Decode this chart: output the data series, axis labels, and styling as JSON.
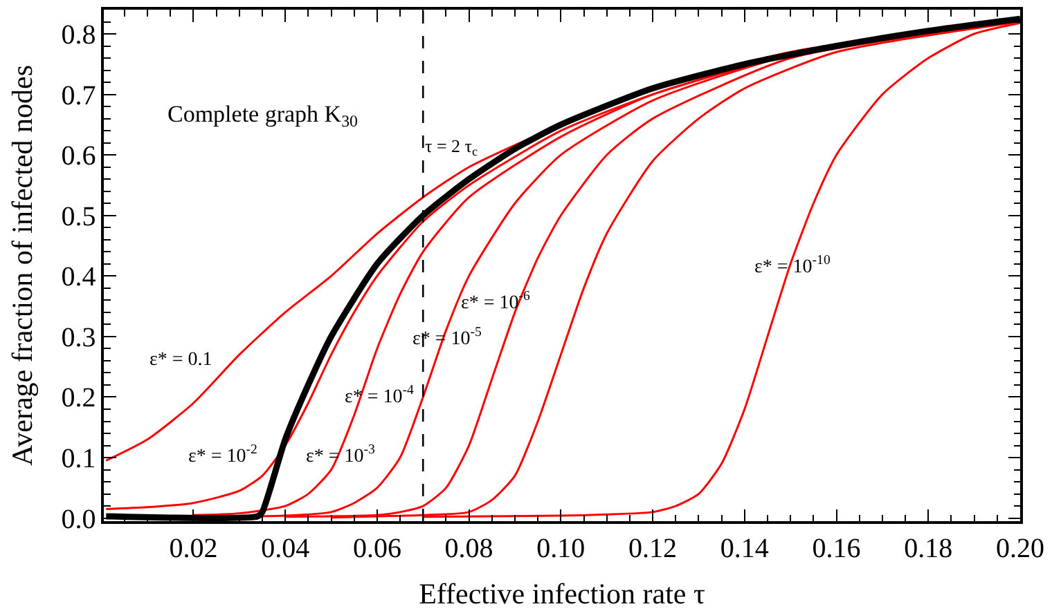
{
  "chart_data": {
    "type": "line",
    "xlabel": "Effective infection rate τ",
    "ylabel": "Average fraction of infected nodes",
    "xlim": [
      0.0005,
      0.2
    ],
    "ylim": [
      -0.005,
      0.84
    ],
    "xticks": [
      0.02,
      0.04,
      0.06,
      0.08,
      {
        "value": 0.1,
        "label": "0.10"
      },
      0.12,
      0.14,
      0.16,
      0.18,
      {
        "value": 0.2,
        "label": "0.20"
      }
    ],
    "yticks": [
      {
        "value": 0,
        "label": "0.0"
      },
      0.1,
      0.2,
      0.3,
      0.4,
      0.5,
      0.6,
      0.7,
      0.8
    ],
    "marker": "none",
    "line_style": "solid",
    "series": [
      {
        "color": "#ff0000",
        "x": [
          0.001,
          0.01,
          0.02,
          0.03,
          0.04,
          0.05,
          0.06,
          0.07,
          0.08,
          0.1,
          0.12,
          0.15,
          0.2
        ],
        "values": [
          0.095,
          0.13,
          0.19,
          0.27,
          0.34,
          0.4,
          0.47,
          0.53,
          0.58,
          0.65,
          0.71,
          0.77,
          0.825
        ]
      },
      {
        "color": "#ff0000",
        "x": [
          0.001,
          0.01,
          0.02,
          0.03,
          0.035,
          0.04,
          0.045,
          0.05,
          0.055,
          0.06,
          0.07,
          0.08,
          0.1,
          0.12,
          0.15,
          0.2
        ],
        "values": [
          0.015,
          0.018,
          0.025,
          0.045,
          0.07,
          0.12,
          0.19,
          0.27,
          0.34,
          0.4,
          0.49,
          0.55,
          0.64,
          0.7,
          0.765,
          0.824
        ]
      },
      {
        "color": "#ff0000",
        "x": [
          0.02,
          0.03,
          0.04,
          0.045,
          0.05,
          0.055,
          0.06,
          0.065,
          0.07,
          0.08,
          0.1,
          0.12,
          0.15,
          0.2
        ],
        "values": [
          0.005,
          0.008,
          0.02,
          0.04,
          0.08,
          0.17,
          0.28,
          0.37,
          0.44,
          0.53,
          0.63,
          0.7,
          0.765,
          0.823
        ]
      },
      {
        "color": "#ff0000",
        "x": [
          0.034,
          0.04,
          0.05,
          0.055,
          0.06,
          0.065,
          0.07,
          0.075,
          0.08,
          0.09,
          0.1,
          0.12,
          0.15,
          0.2
        ],
        "values": [
          0.003,
          0.004,
          0.01,
          0.025,
          0.05,
          0.1,
          0.2,
          0.31,
          0.4,
          0.52,
          0.6,
          0.69,
          0.765,
          0.822
        ]
      },
      {
        "color": "#ff0000",
        "x": [
          0.04,
          0.05,
          0.06,
          0.065,
          0.07,
          0.075,
          0.08,
          0.085,
          0.09,
          0.095,
          0.1,
          0.11,
          0.12,
          0.15,
          0.2
        ],
        "values": [
          0.002,
          0.003,
          0.005,
          0.01,
          0.02,
          0.05,
          0.12,
          0.23,
          0.34,
          0.43,
          0.5,
          0.6,
          0.66,
          0.76,
          0.821
        ]
      },
      {
        "color": "#ff0000",
        "x": [
          0.05,
          0.06,
          0.07,
          0.08,
          0.085,
          0.09,
          0.095,
          0.1,
          0.105,
          0.11,
          0.12,
          0.13,
          0.14,
          0.16,
          0.2
        ],
        "values": [
          0.001,
          0.003,
          0.005,
          0.01,
          0.03,
          0.07,
          0.16,
          0.27,
          0.38,
          0.47,
          0.59,
          0.66,
          0.71,
          0.77,
          0.82
        ]
      },
      {
        "color": "#ff0000",
        "x": [
          0.07,
          0.1,
          0.11,
          0.12,
          0.125,
          0.13,
          0.135,
          0.14,
          0.145,
          0.15,
          0.155,
          0.16,
          0.17,
          0.18,
          0.19,
          0.2
        ],
        "values": [
          0.002,
          0.004,
          0.006,
          0.01,
          0.02,
          0.04,
          0.09,
          0.18,
          0.3,
          0.42,
          0.52,
          0.6,
          0.7,
          0.76,
          0.8,
          0.818
        ]
      },
      {
        "color": "#000000",
        "x": [
          0.001,
          0.034,
          0.035,
          0.04,
          0.045,
          0.05,
          0.06,
          0.07,
          0.08,
          0.09,
          0.1,
          0.12,
          0.14,
          0.16,
          0.18,
          0.2
        ],
        "values": [
          0.003,
          0.003,
          0.01,
          0.13,
          0.22,
          0.3,
          0.42,
          0.5,
          0.56,
          0.61,
          0.65,
          0.71,
          0.75,
          0.78,
          0.805,
          0.825
        ]
      }
    ],
    "ref_lines": [
      {
        "axis": "x",
        "value": 0.07,
        "color": "#000000",
        "line_style": "dashed"
      }
    ],
    "annotations": [
      "Complete graph K$_{30}$",
      "τ = 2 τ$_{c}$",
      "ε* = 0.1",
      "ε* = 10$^{-2}$",
      "ε* = 10$^{-3}$",
      "ε* = 10$^{-4}$",
      "ε* = 10$^{-5}$",
      "ε* = 10$^{-6}$",
      "ε* = 10$^{-10}$"
    ]
  }
}
